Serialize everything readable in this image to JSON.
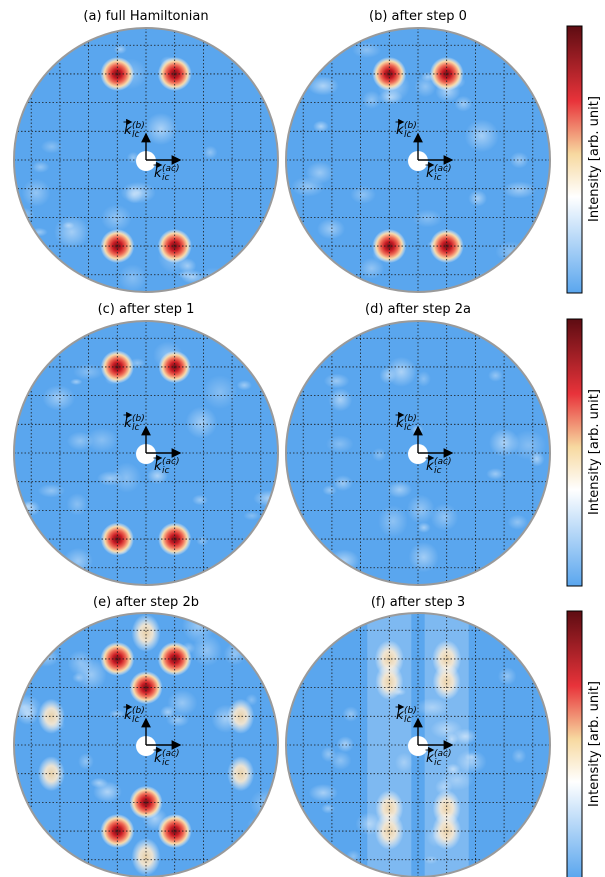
{
  "panels": [
    {
      "id": "a",
      "title": "(a) full Hamiltonian",
      "peaks": [
        {
          "x": -1,
          "y": 3,
          "a": 1.0
        },
        {
          "x": 1,
          "y": 3,
          "a": 1.0
        },
        {
          "x": -1,
          "y": -3,
          "a": 1.0
        },
        {
          "x": 1,
          "y": -3,
          "a": 1.0
        }
      ]
    },
    {
      "id": "b",
      "title": "(b) after step 0",
      "peaks": [
        {
          "x": -1,
          "y": 3,
          "a": 1.0
        },
        {
          "x": 1,
          "y": 3,
          "a": 1.0
        },
        {
          "x": -1,
          "y": -3,
          "a": 1.0
        },
        {
          "x": 1,
          "y": -3,
          "a": 1.0
        }
      ]
    },
    {
      "id": "c",
      "title": "(c) after step 1",
      "peaks": [
        {
          "x": -1,
          "y": 3,
          "a": 0.95
        },
        {
          "x": 1,
          "y": 3,
          "a": 0.9
        },
        {
          "x": -1,
          "y": -3,
          "a": 0.95
        },
        {
          "x": 1,
          "y": -3,
          "a": 0.95
        }
      ]
    },
    {
      "id": "d",
      "title": "(d) after step 2a",
      "peaks": []
    },
    {
      "id": "e",
      "title": "(e) after step 2b",
      "peaks": [
        {
          "x": -1,
          "y": 3,
          "a": 1.0
        },
        {
          "x": 1,
          "y": 3,
          "a": 1.0
        },
        {
          "x": 0,
          "y": 2,
          "a": 0.95
        },
        {
          "x": 0,
          "y": -2,
          "a": 0.95
        },
        {
          "x": -1,
          "y": -3,
          "a": 1.0
        },
        {
          "x": 1,
          "y": -3,
          "a": 1.0
        },
        {
          "x": 0,
          "y": 3.9,
          "a": 0.45
        },
        {
          "x": 0,
          "y": -3.9,
          "a": 0.45
        },
        {
          "x": -3.3,
          "y": 1,
          "a": 0.35
        },
        {
          "x": 3.3,
          "y": 1,
          "a": 0.35
        },
        {
          "x": -3.3,
          "y": -1,
          "a": 0.35
        },
        {
          "x": 3.3,
          "y": -1,
          "a": 0.35
        }
      ]
    },
    {
      "id": "f",
      "title": "(f) after step 3",
      "peaks": [
        {
          "x": -1,
          "y": 3,
          "a": 0.45
        },
        {
          "x": 1,
          "y": 3,
          "a": 0.45
        },
        {
          "x": -1,
          "y": 2.2,
          "a": 0.4
        },
        {
          "x": 1,
          "y": 2.2,
          "a": 0.4
        },
        {
          "x": -1,
          "y": -2.2,
          "a": 0.4
        },
        {
          "x": 1,
          "y": -2.2,
          "a": 0.4
        },
        {
          "x": -1,
          "y": -3,
          "a": 0.45
        },
        {
          "x": 1,
          "y": -3,
          "a": 0.45
        }
      ]
    }
  ],
  "axis_labels": {
    "b": "b",
    "ac": "ac"
  },
  "colorbar": {
    "label": "Intensity [arb. unit]"
  },
  "colors": {
    "background": "#5aa6ee",
    "ring": "#9a9a9a",
    "grid": "#1a1a1a",
    "colormap": [
      "#5aa6ee",
      "#ffffff",
      "#f7d9a0",
      "#e8333a",
      "#6a0f16"
    ]
  }
}
